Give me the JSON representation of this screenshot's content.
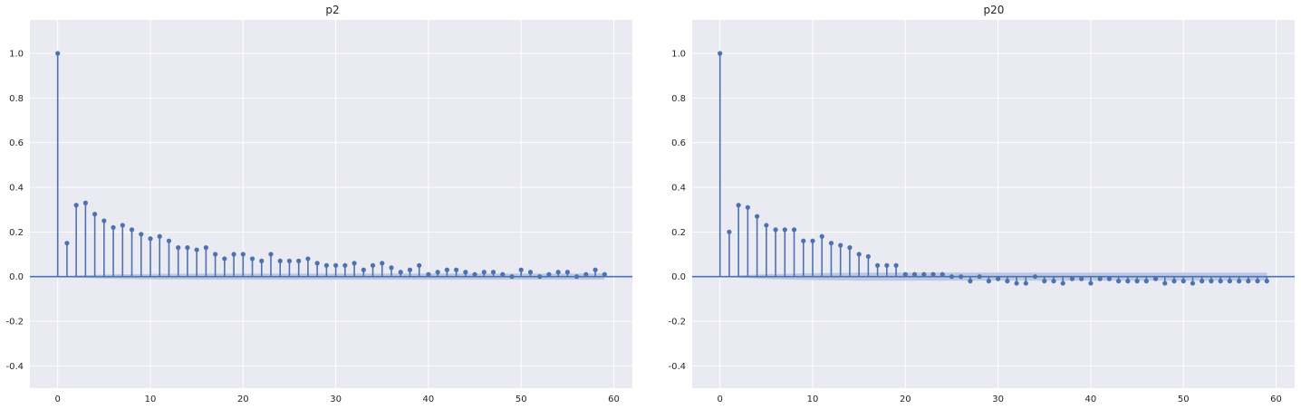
{
  "chart_data": [
    {
      "type": "stem",
      "title": "p2",
      "xlabel": "",
      "ylabel": "",
      "xlim": [
        -3,
        62
      ],
      "ylim": [
        -0.5,
        1.15
      ],
      "xticks": [
        0,
        10,
        20,
        30,
        40,
        50,
        60
      ],
      "yticks": [
        -0.4,
        -0.2,
        0.0,
        0.2,
        0.4,
        0.6,
        0.8,
        1.0
      ],
      "ytick_labels": [
        "-0.4",
        "-0.2",
        "0.0",
        "0.2",
        "0.4",
        "0.6",
        "0.8",
        "1.0"
      ],
      "grid": true,
      "lags": [
        0,
        1,
        2,
        3,
        4,
        5,
        6,
        7,
        8,
        9,
        10,
        11,
        12,
        13,
        14,
        15,
        16,
        17,
        18,
        19,
        20,
        21,
        22,
        23,
        24,
        25,
        26,
        27,
        28,
        29,
        30,
        31,
        32,
        33,
        34,
        35,
        36,
        37,
        38,
        39,
        40,
        41,
        42,
        43,
        44,
        45,
        46,
        47,
        48,
        49,
        50,
        51,
        52,
        53,
        54,
        55,
        56,
        57,
        58,
        59
      ],
      "values": [
        1.0,
        0.15,
        0.32,
        0.33,
        0.28,
        0.25,
        0.22,
        0.23,
        0.21,
        0.19,
        0.17,
        0.18,
        0.16,
        0.13,
        0.13,
        0.12,
        0.13,
        0.1,
        0.08,
        0.1,
        0.1,
        0.08,
        0.07,
        0.1,
        0.07,
        0.07,
        0.07,
        0.08,
        0.06,
        0.05,
        0.05,
        0.05,
        0.06,
        0.03,
        0.05,
        0.06,
        0.04,
        0.02,
        0.03,
        0.05,
        0.01,
        0.02,
        0.03,
        0.03,
        0.02,
        0.01,
        0.02,
        0.02,
        0.01,
        0.0,
        0.03,
        0.02,
        0.0,
        0.01,
        0.02,
        0.02,
        0.0,
        0.01,
        0.03,
        0.01
      ],
      "confint_half_width": [
        0.0,
        0.0,
        0.005,
        0.006,
        0.008,
        0.009,
        0.01,
        0.011,
        0.011,
        0.012,
        0.012,
        0.013,
        0.013,
        0.013,
        0.013,
        0.014,
        0.014,
        0.014,
        0.014,
        0.014,
        0.014,
        0.014,
        0.014,
        0.014,
        0.014,
        0.014,
        0.014,
        0.014,
        0.014,
        0.014,
        0.014,
        0.014,
        0.014,
        0.014,
        0.014,
        0.014,
        0.014,
        0.014,
        0.014,
        0.014,
        0.014,
        0.014,
        0.014,
        0.014,
        0.014,
        0.014,
        0.014,
        0.014,
        0.014,
        0.014,
        0.014,
        0.014,
        0.014,
        0.014,
        0.014,
        0.014,
        0.014,
        0.014,
        0.014,
        0.014
      ],
      "colors": {
        "stem": "#4c72b0",
        "band": "#b5c3df",
        "background": "#eaeaf2",
        "grid": "#ffffff"
      }
    },
    {
      "type": "stem",
      "title": "p20",
      "xlabel": "",
      "ylabel": "",
      "xlim": [
        -3,
        62
      ],
      "ylim": [
        -0.5,
        1.15
      ],
      "xticks": [
        0,
        10,
        20,
        30,
        40,
        50,
        60
      ],
      "yticks": [
        -0.4,
        -0.2,
        0.0,
        0.2,
        0.4,
        0.6,
        0.8,
        1.0
      ],
      "ytick_labels": [
        "-0.4",
        "-0.2",
        "0.0",
        "0.2",
        "0.4",
        "0.6",
        "0.8",
        "1.0"
      ],
      "grid": true,
      "lags": [
        0,
        1,
        2,
        3,
        4,
        5,
        6,
        7,
        8,
        9,
        10,
        11,
        12,
        13,
        14,
        15,
        16,
        17,
        18,
        19,
        20,
        21,
        22,
        23,
        24,
        25,
        26,
        27,
        28,
        29,
        30,
        31,
        32,
        33,
        34,
        35,
        36,
        37,
        38,
        39,
        40,
        41,
        42,
        43,
        44,
        45,
        46,
        47,
        48,
        49,
        50,
        51,
        52,
        53,
        54,
        55,
        56,
        57,
        58,
        59
      ],
      "values": [
        1.0,
        0.2,
        0.32,
        0.31,
        0.27,
        0.23,
        0.21,
        0.21,
        0.21,
        0.16,
        0.16,
        0.18,
        0.15,
        0.14,
        0.13,
        0.1,
        0.09,
        0.05,
        0.05,
        0.05,
        0.01,
        0.01,
        0.01,
        0.01,
        0.01,
        0.0,
        0.0,
        -0.02,
        0.0,
        -0.02,
        -0.01,
        -0.02,
        -0.03,
        -0.03,
        0.0,
        -0.02,
        -0.02,
        -0.03,
        -0.01,
        -0.01,
        -0.03,
        -0.01,
        -0.01,
        -0.02,
        -0.02,
        -0.02,
        -0.02,
        -0.01,
        -0.03,
        -0.02,
        -0.02,
        -0.03,
        -0.02,
        -0.02,
        -0.02,
        -0.02,
        -0.02,
        -0.02,
        -0.02,
        -0.02
      ],
      "confint_half_width": [
        0.0,
        0.0,
        0.005,
        0.007,
        0.009,
        0.011,
        0.012,
        0.013,
        0.014,
        0.015,
        0.015,
        0.016,
        0.016,
        0.017,
        0.017,
        0.018,
        0.018,
        0.018,
        0.018,
        0.018,
        0.018,
        0.018,
        0.018,
        0.018,
        0.018,
        0.018,
        0.018,
        0.018,
        0.018,
        0.018,
        0.018,
        0.018,
        0.018,
        0.018,
        0.018,
        0.018,
        0.018,
        0.018,
        0.018,
        0.018,
        0.018,
        0.018,
        0.018,
        0.018,
        0.018,
        0.018,
        0.018,
        0.018,
        0.018,
        0.018,
        0.018,
        0.018,
        0.018,
        0.018,
        0.018,
        0.018,
        0.018,
        0.018,
        0.018,
        0.018
      ],
      "colors": {
        "stem": "#4c72b0",
        "band": "#b5c3df",
        "background": "#eaeaf2",
        "grid": "#ffffff"
      }
    }
  ]
}
